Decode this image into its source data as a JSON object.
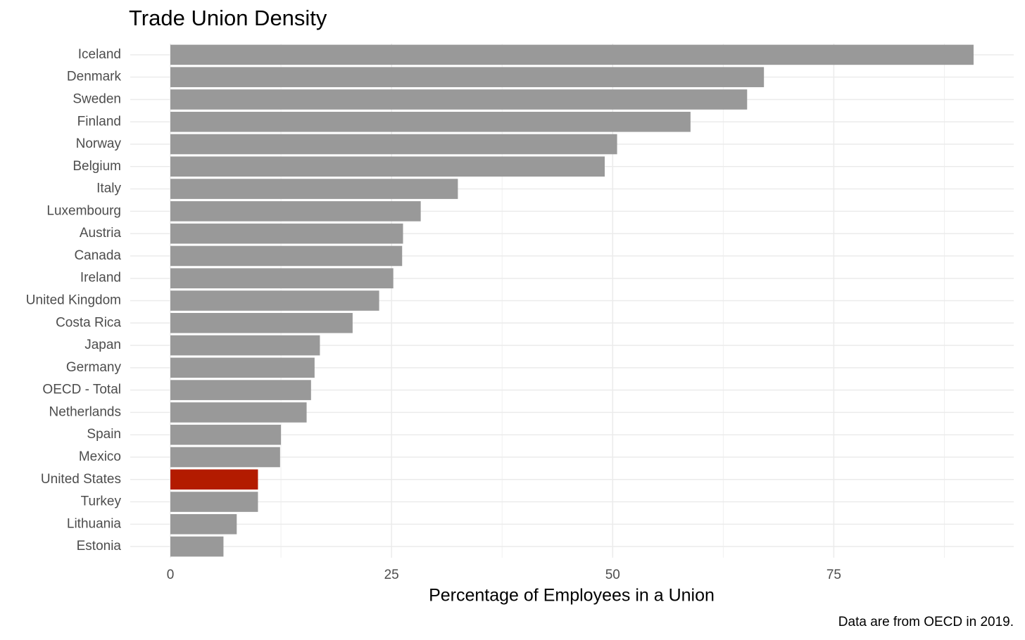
{
  "chart_data": {
    "type": "hbar",
    "title": "Trade Union Density",
    "xlabel": "Percentage of Employees in a Union",
    "caption": "Data are from OECD in 2019.",
    "categories": [
      "Iceland",
      "Denmark",
      "Sweden",
      "Finland",
      "Norway",
      "Belgium",
      "Italy",
      "Luxembourg",
      "Austria",
      "Canada",
      "Ireland",
      "United Kingdom",
      "Costa Rica",
      "Japan",
      "Germany",
      "OECD - Total",
      "Netherlands",
      "Spain",
      "Mexico",
      "United States",
      "Turkey",
      "Lithuania",
      "Estonia"
    ],
    "values": [
      90.8,
      67.1,
      65.2,
      58.8,
      50.5,
      49.1,
      32.5,
      28.3,
      26.3,
      26.2,
      25.2,
      23.6,
      20.6,
      16.9,
      16.3,
      15.9,
      15.4,
      12.5,
      12.4,
      9.9,
      9.9,
      7.5,
      6.0
    ],
    "colors": [
      "#999999",
      "#999999",
      "#999999",
      "#999999",
      "#999999",
      "#999999",
      "#999999",
      "#999999",
      "#999999",
      "#999999",
      "#999999",
      "#999999",
      "#999999",
      "#999999",
      "#999999",
      "#999999",
      "#999999",
      "#999999",
      "#999999",
      "#b31b00",
      "#999999",
      "#999999",
      "#999999"
    ],
    "xlim": [
      -4.54,
      95.34
    ],
    "xticks": [
      0,
      25,
      50,
      75
    ],
    "minor_xticks": [
      12.5,
      37.5,
      62.5,
      87.5
    ],
    "grid": true
  }
}
